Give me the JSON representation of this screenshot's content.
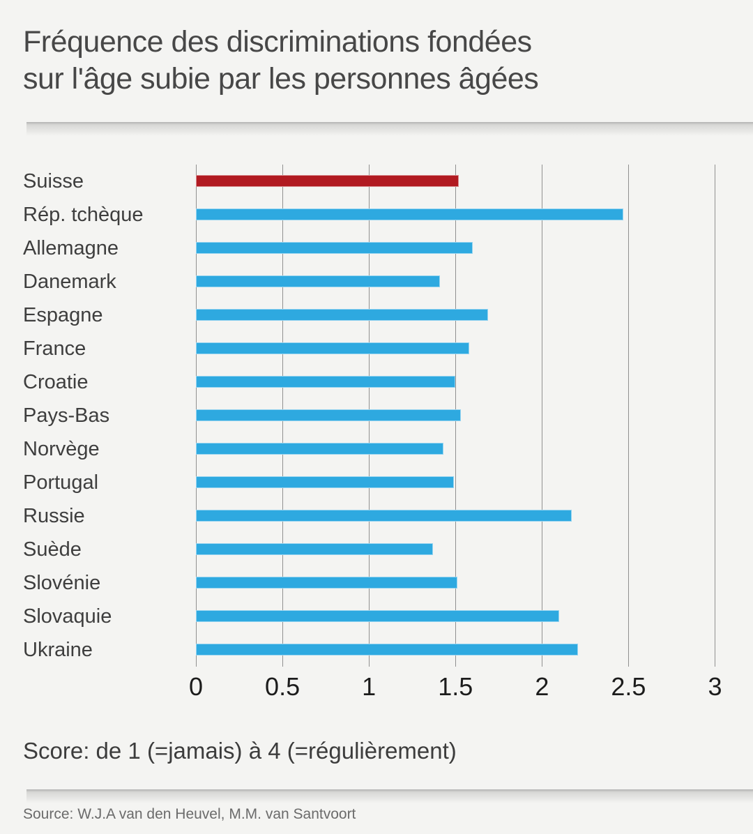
{
  "header": {
    "title_line1": "Fréquence des discriminations fondées",
    "title_line2": "sur l'âge subie par les personnes âgées"
  },
  "chart_data": {
    "type": "bar",
    "orientation": "horizontal",
    "title": "Fréquence des discriminations fondées sur l'âge subie par les personnes âgées",
    "categories": [
      "Suisse",
      "Rép. tchèque",
      "Allemagne",
      "Danemark",
      "Espagne",
      "France",
      "Croatie",
      "Pays-Bas",
      "Norvège",
      "Portugal",
      "Russie",
      "Suède",
      "Slovénie",
      "Slovaquie",
      "Ukraine"
    ],
    "values": [
      1.52,
      2.47,
      1.6,
      1.41,
      1.69,
      1.58,
      1.5,
      1.53,
      1.43,
      1.49,
      2.17,
      1.37,
      1.51,
      2.1,
      2.21
    ],
    "highlight_category": "Suisse",
    "xlabel": "",
    "ylabel": "",
    "xlim": [
      0,
      3
    ],
    "x_ticks": [
      0,
      0.5,
      1,
      1.5,
      2,
      2.5,
      3
    ],
    "x_tick_labels": [
      "0",
      "0.5",
      "1",
      "1.5",
      "2",
      "2.5",
      "3"
    ],
    "grid": true,
    "legend": false,
    "colors": {
      "bar": "#2ea9e0",
      "highlight": "#b11a21",
      "gridline": "#909090",
      "background": "#f4f4f2"
    }
  },
  "footer": {
    "score_note": "Score: de 1 (=jamais) à 4 (=régulièrement)",
    "source": "Source: W.J.A van den Heuvel, M.M. van Santvoort"
  }
}
